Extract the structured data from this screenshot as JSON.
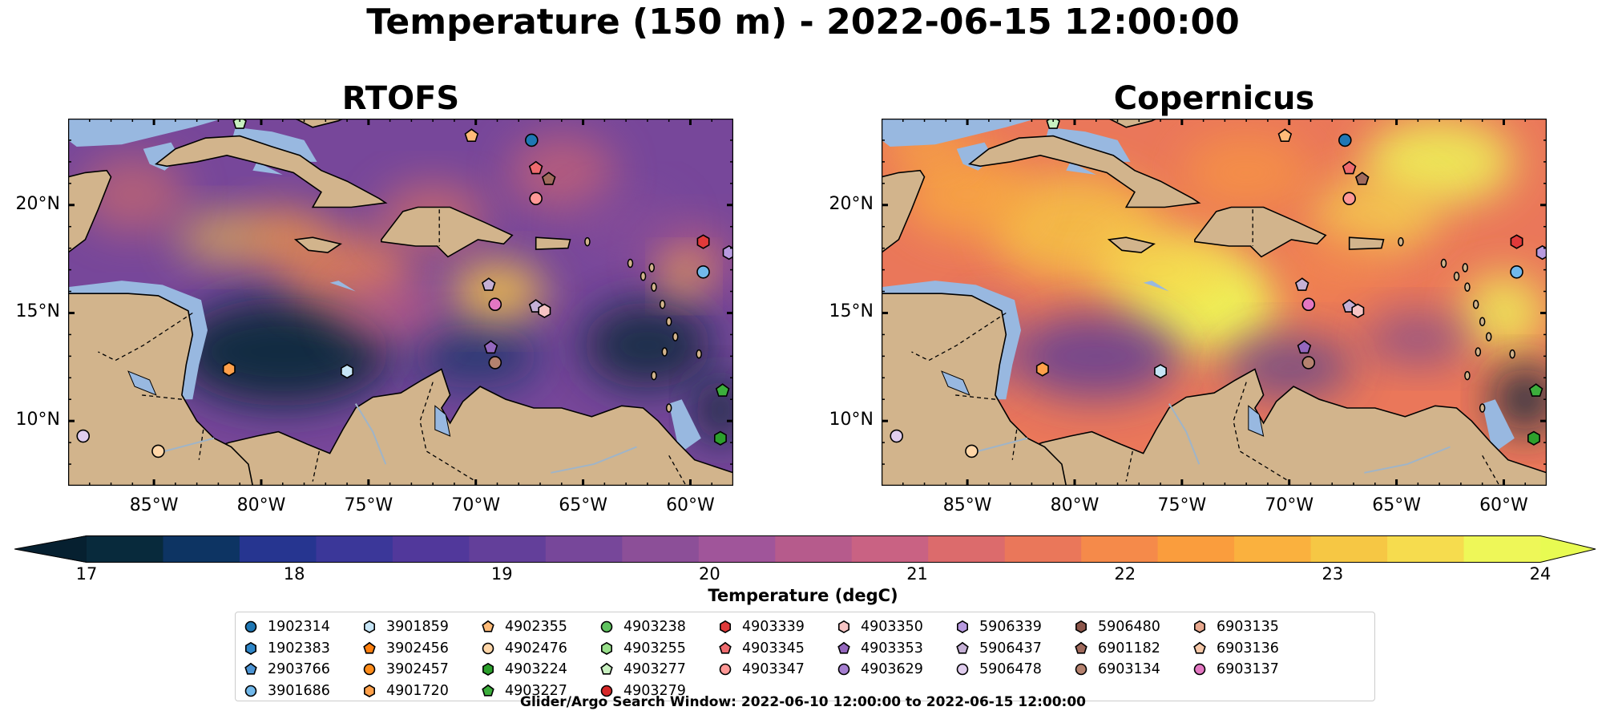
{
  "figure": {
    "title": "Temperature (150 m) - 2022-06-15 12:00:00",
    "footnote": "Glider/Argo Search Window: 2022-06-10 12:00:00 to 2022-06-15 12:00:00"
  },
  "panels": [
    {
      "title": "RTOFS",
      "style": "cool"
    },
    {
      "title": "Copernicus",
      "style": "warm"
    }
  ],
  "axes": {
    "lon_ticks": [
      "85°W",
      "80°W",
      "75°W",
      "70°W",
      "65°W",
      "60°W"
    ],
    "lon_values": [
      -85,
      -80,
      -75,
      -70,
      -65,
      -60
    ],
    "lat_ticks": [
      "20°N",
      "15°N",
      "10°N"
    ],
    "lat_values": [
      20,
      15,
      10
    ],
    "lon_range": [
      -89,
      -58
    ],
    "lat_range": [
      7,
      24
    ]
  },
  "colorbar": {
    "label": "Temperature (degC)",
    "ticks": [
      "17",
      "18",
      "19",
      "20",
      "21",
      "22",
      "23",
      "24"
    ],
    "range": [
      17,
      24
    ],
    "extend": "both",
    "colors": [
      "#082a3c",
      "#0d3463",
      "#263590",
      "#3b3799",
      "#51389b",
      "#633f9a",
      "#77479a",
      "#8c4f98",
      "#a0559a",
      "#b65b8c",
      "#c96283",
      "#dc6b6c",
      "#ea775a",
      "#f58a4a",
      "#fa9d3d",
      "#fab13e",
      "#f6c744",
      "#f6dc4e",
      "#eef758"
    ],
    "low_color": "#062030",
    "high_color": "#e8fb52"
  },
  "legend": {
    "columns": [
      [
        {
          "id": "1902314",
          "color": "#1f77b4",
          "marker": "circle"
        },
        {
          "id": "1902383",
          "color": "#2e86c8",
          "marker": "hexagon"
        },
        {
          "id": "2903766",
          "color": "#4c94d4",
          "marker": "pentagon"
        },
        {
          "id": "3901686",
          "color": "#71b8ea",
          "marker": "circle"
        }
      ],
      [
        {
          "id": "3901859",
          "color": "#c6e5f6",
          "marker": "hexagon"
        },
        {
          "id": "3902456",
          "color": "#ff7f0e",
          "marker": "pentagon"
        },
        {
          "id": "3902457",
          "color": "#ff8c1a",
          "marker": "circle"
        },
        {
          "id": "4901720",
          "color": "#ffa04a",
          "marker": "hexagon"
        }
      ],
      [
        {
          "id": "4902355",
          "color": "#ffbb78",
          "marker": "pentagon"
        },
        {
          "id": "4902476",
          "color": "#ffd6a8",
          "marker": "circle"
        },
        {
          "id": "4903224",
          "color": "#2ca02c",
          "marker": "hexagon"
        },
        {
          "id": "4903227",
          "color": "#3cae3c",
          "marker": "pentagon"
        }
      ],
      [
        {
          "id": "4903238",
          "color": "#5fc35f",
          "marker": "circle"
        },
        {
          "id": "4903255",
          "color": "#98df8a",
          "marker": "hexagon"
        },
        {
          "id": "4903277",
          "color": "#c8f0c0",
          "marker": "pentagon"
        },
        {
          "id": "4903279",
          "color": "#d62728",
          "marker": "circle"
        }
      ],
      [
        {
          "id": "4903339",
          "color": "#e03a3a",
          "marker": "hexagon"
        },
        {
          "id": "4903345",
          "color": "#ee6b6e",
          "marker": "pentagon"
        },
        {
          "id": "4903347",
          "color": "#ff9896",
          "marker": "circle"
        }
      ],
      [
        {
          "id": "4903350",
          "color": "#f6c4c4",
          "marker": "hexagon"
        },
        {
          "id": "4903353",
          "color": "#9467bd",
          "marker": "pentagon"
        },
        {
          "id": "4903629",
          "color": "#a57ed0",
          "marker": "circle"
        }
      ],
      [
        {
          "id": "5906339",
          "color": "#b89ae0",
          "marker": "hexagon"
        },
        {
          "id": "5906437",
          "color": "#c5b0d5",
          "marker": "pentagon"
        },
        {
          "id": "5906478",
          "color": "#e0cdee",
          "marker": "circle"
        }
      ],
      [
        {
          "id": "5906480",
          "color": "#8c564b",
          "marker": "hexagon"
        },
        {
          "id": "6901182",
          "color": "#a06a5c",
          "marker": "pentagon"
        },
        {
          "id": "6903134",
          "color": "#b5826f",
          "marker": "circle"
        }
      ],
      [
        {
          "id": "6903135",
          "color": "#e8a88e",
          "marker": "hexagon"
        },
        {
          "id": "6903136",
          "color": "#f7c8a8",
          "marker": "pentagon"
        },
        {
          "id": "6903137",
          "color": "#e377c2",
          "marker": "circle"
        }
      ]
    ]
  },
  "floats": [
    {
      "lon": -67.4,
      "lat": 23.0,
      "color": "#1f77b4",
      "marker": "circle"
    },
    {
      "lon": -70.2,
      "lat": 23.2,
      "color": "#ffbb78",
      "marker": "pentagon"
    },
    {
      "lon": -67.2,
      "lat": 21.7,
      "color": "#ee6b6e",
      "marker": "pentagon"
    },
    {
      "lon": -66.6,
      "lat": 21.2,
      "color": "#a06a5c",
      "marker": "pentagon"
    },
    {
      "lon": -67.2,
      "lat": 20.3,
      "color": "#ff9896",
      "marker": "circle"
    },
    {
      "lon": -59.4,
      "lat": 18.3,
      "color": "#e03a3a",
      "marker": "hexagon"
    },
    {
      "lon": -58.2,
      "lat": 17.8,
      "color": "#b89ae0",
      "marker": "hexagon"
    },
    {
      "lon": -59.4,
      "lat": 16.9,
      "color": "#71b8ea",
      "marker": "circle"
    },
    {
      "lon": -69.4,
      "lat": 16.3,
      "color": "#c5b0d5",
      "marker": "pentagon"
    },
    {
      "lon": -69.1,
      "lat": 15.4,
      "color": "#e377c2",
      "marker": "circle"
    },
    {
      "lon": -67.2,
      "lat": 15.3,
      "color": "#c5b0d5",
      "marker": "pentagon"
    },
    {
      "lon": -66.8,
      "lat": 15.1,
      "color": "#f6c4c4",
      "marker": "hexagon"
    },
    {
      "lon": -69.3,
      "lat": 13.4,
      "color": "#9467bd",
      "marker": "pentagon"
    },
    {
      "lon": -69.1,
      "lat": 12.7,
      "color": "#b5826f",
      "marker": "circle"
    },
    {
      "lon": -81.5,
      "lat": 12.4,
      "color": "#ffa04a",
      "marker": "hexagon"
    },
    {
      "lon": -76.0,
      "lat": 12.3,
      "color": "#c6e5f6",
      "marker": "hexagon"
    },
    {
      "lon": -58.5,
      "lat": 11.4,
      "color": "#3cae3c",
      "marker": "pentagon"
    },
    {
      "lon": -58.6,
      "lat": 9.2,
      "color": "#2ca02c",
      "marker": "hexagon"
    },
    {
      "lon": -88.3,
      "lat": 9.3,
      "color": "#e0cdee",
      "marker": "circle"
    },
    {
      "lon": -84.8,
      "lat": 8.6,
      "color": "#ffd6a8",
      "marker": "circle"
    },
    {
      "lon": -81.0,
      "lat": 23.8,
      "color": "#c8f0c0",
      "marker": "pentagon"
    }
  ]
}
